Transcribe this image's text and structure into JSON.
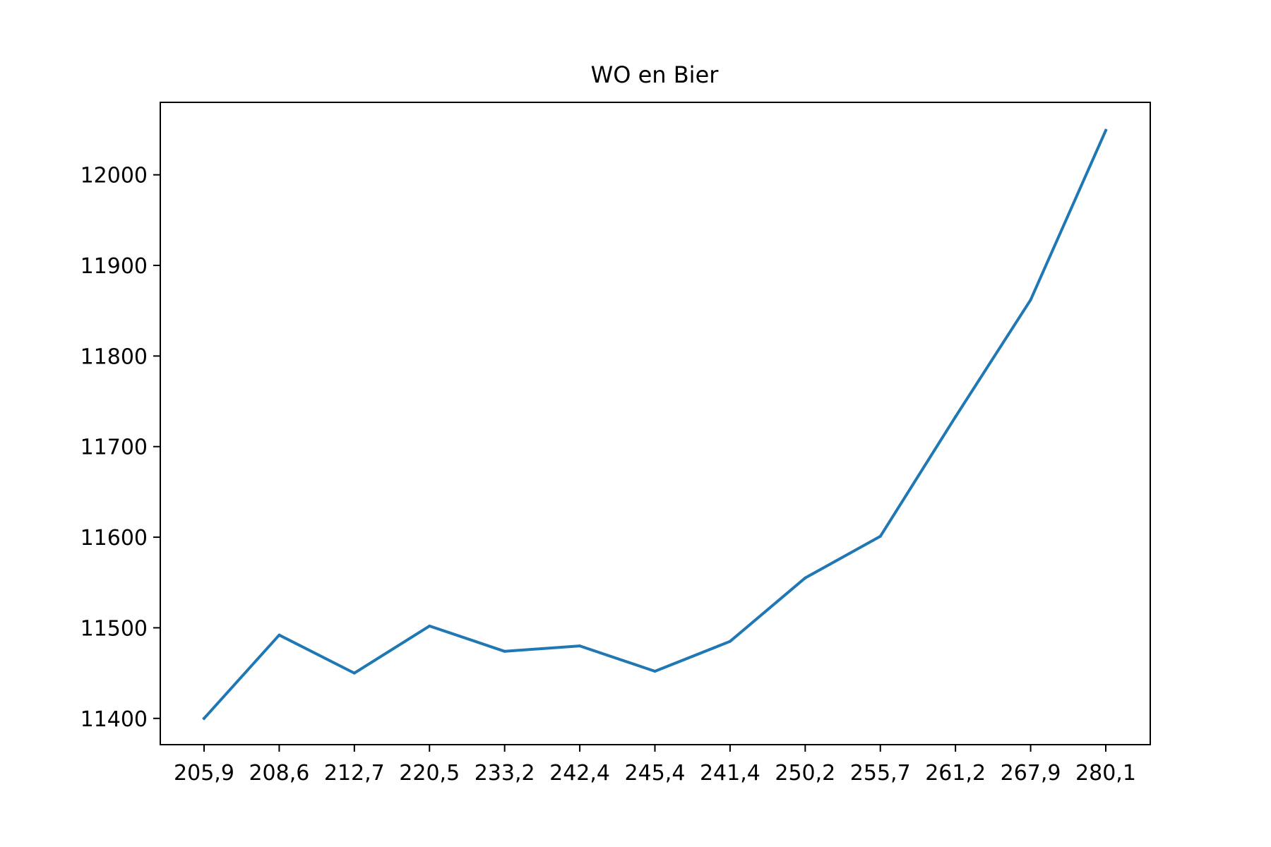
{
  "chart_data": {
    "type": "line",
    "title": "WO en Bier",
    "xlabel": "",
    "ylabel": "",
    "categories": [
      "205,9",
      "208,6",
      "212,7",
      "220,5",
      "233,2",
      "242,4",
      "245,4",
      "241,4",
      "250,2",
      "255,7",
      "261,2",
      "267,9",
      "280,1"
    ],
    "series": [
      {
        "values": [
          11400,
          11492,
          11450,
          11502,
          11474,
          11480,
          11452,
          11485,
          11555,
          11601,
          11733,
          11862,
          12049
        ],
        "color": "#1f77b4"
      }
    ],
    "yticks": [
      11400,
      11500,
      11600,
      11700,
      11800,
      11900,
      12000
    ],
    "ylim": [
      11371,
      12080
    ],
    "grid": false,
    "legend": "none"
  }
}
